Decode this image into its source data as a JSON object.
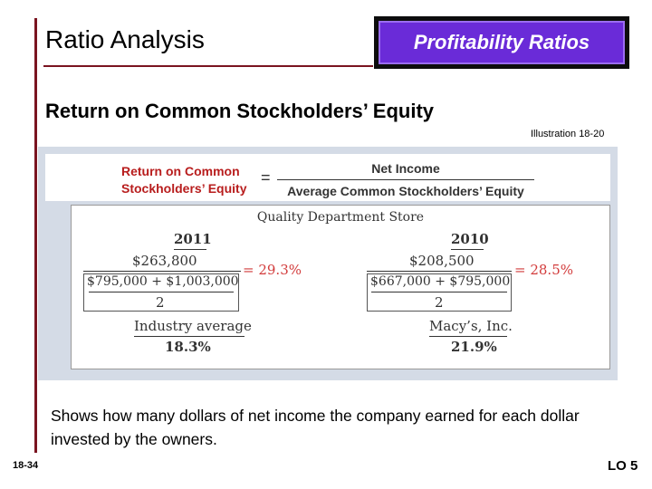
{
  "header": {
    "title": "Ratio Analysis",
    "badge": "Profitability Ratios"
  },
  "subtitle": "Return on Common Stockholders’ Equity",
  "illustration": "Illustration 18-20",
  "formula": {
    "left_line1": "Return on Common",
    "left_line2": "Stockholders’ Equity",
    "equals": "=",
    "numerator": "Net Income",
    "denominator": "Average Common Stockholders’ Equity"
  },
  "example": {
    "company": "Quality Department Store",
    "y2011": {
      "year": "2011",
      "numerator": "$263,800",
      "denominator": "$795,000 + $1,003,000",
      "divisor": "2",
      "result": "= 29.3%",
      "compare_label": "Industry average",
      "compare_value": "18.3%"
    },
    "y2010": {
      "year": "2010",
      "numerator": "$208,500",
      "denominator": "$667,000 + $795,000",
      "divisor": "2",
      "result": "= 28.5%",
      "compare_label": "Macy’s, Inc.",
      "compare_value": "21.9%"
    }
  },
  "description": "Shows how many dollars of net income the company earned for each dollar invested by the owners.",
  "footer": {
    "slide_number": "18-34",
    "learning_objective": "LO 5"
  },
  "colors": {
    "accent_bar": "#7a1420",
    "badge_fill": "#6a2bd8",
    "panel_bg": "#d4dbe6",
    "formula_red": "#b81d1d",
    "result_red": "#d23b3b"
  }
}
